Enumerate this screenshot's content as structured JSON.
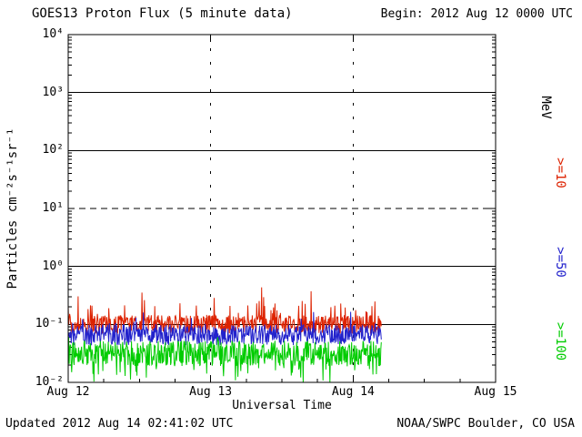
{
  "header": {
    "title": "GOES13 Proton Flux (5 minute data)",
    "begin_label": "Begin: 2012 Aug 12 0000 UTC"
  },
  "footer": {
    "updated": "Updated 2012 Aug 14 02:41:02 UTC",
    "source": "NOAA/SWPC Boulder, CO USA"
  },
  "chart_data": {
    "type": "line",
    "title": "GOES13 Proton Flux (5 minute data)",
    "xlabel": "Universal Time",
    "ylabel": "Particles cm⁻²s⁻¹sr⁻¹",
    "x_tick_labels": [
      "Aug 12",
      "Aug 13",
      "Aug 14",
      "Aug 15"
    ],
    "x_range_days": 3,
    "y_tick_labels": [
      "10⁴",
      "10³",
      "10²",
      "10¹",
      "10⁰",
      "10⁻¹",
      "10⁻²"
    ],
    "y_tick_exponents": [
      4,
      3,
      2,
      1,
      0,
      -1,
      -2
    ],
    "y_exponent_range": [
      -2,
      4
    ],
    "solid_gridline_exponents": [
      3,
      2,
      0,
      -1
    ],
    "dashed_gridline_exponents": [
      1
    ],
    "vertical_gridline_days": [
      1,
      2
    ],
    "right_axis_unit": "MeV",
    "sample_interval_minutes": 5,
    "data_end_day_fraction": 2.2,
    "series": [
      {
        "label": ">=10",
        "unit": "MeV",
        "color": "#dd2200",
        "mean_log": -1.0,
        "noise_log": 0.16,
        "spike_log": 0.5,
        "spike_prob": 0.1
      },
      {
        "label": ">=50",
        "unit": "MeV",
        "color": "#2222cc",
        "mean_log": -1.18,
        "noise_log": 0.18,
        "spike_log": 0.28,
        "spike_prob": 0.07
      },
      {
        "label": ">=100",
        "unit": "MeV",
        "color": "#00cc00",
        "mean_log": -1.5,
        "noise_log": 0.22,
        "spike_log": 0.2,
        "spike_prob": 0.05,
        "dip_log": 0.45,
        "dip_prob": 0.12
      }
    ]
  }
}
